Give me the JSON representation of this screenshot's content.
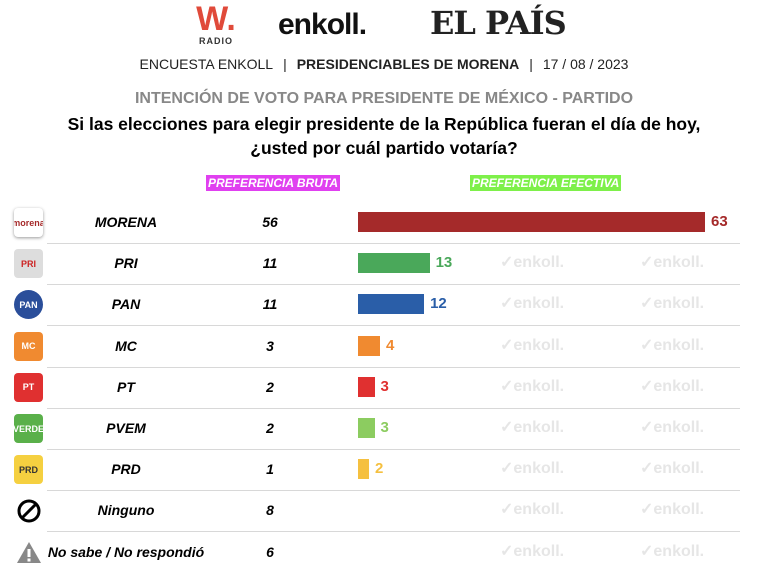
{
  "logos": {
    "wradio": "W.",
    "wradio_sub": "RADIO",
    "enkoll": "enkoll.",
    "elpais": "EL PAÍS"
  },
  "subtitle": {
    "left": "ENCUESTA ENKOLL",
    "center": "PRESIDENCIABLES DE MORENA",
    "right": "17 / 08 / 2023",
    "sep": "|"
  },
  "watermark": "enkoll.",
  "chart_data": {
    "type": "bar",
    "title": "INTENCIÓN DE VOTO PARA PRESIDENTE DE MÉXICO - PARTIDO",
    "subtitle": "Si las elecciones para elegir presidente de la República fueran el día de hoy, ¿usted por cuál partido votaría?",
    "col_bruta": "PREFERENCIA BRUTA",
    "col_efectiva": "PREFERENCIA EFECTIVA",
    "categories": [
      "MORENA",
      "PRI",
      "PAN",
      "MC",
      "PT",
      "PVEM",
      "PRD",
      "Ninguno",
      "No sabe / No respondió"
    ],
    "logo_text": [
      "morena",
      "PRI",
      "PAN",
      "MC",
      "PT",
      "VERDE",
      "PRD",
      "",
      ""
    ],
    "bruta": [
      56,
      11,
      11,
      3,
      2,
      2,
      1,
      8,
      6
    ],
    "efectiva": [
      63,
      13,
      12,
      4,
      3,
      3,
      2,
      null,
      null
    ],
    "colors": [
      "#a52a2a",
      "#4aa85a",
      "#2a5ea8",
      "#f08a30",
      "#e03030",
      "#8ccc60",
      "#f5c040",
      null,
      null
    ],
    "xlim": [
      0,
      63
    ]
  }
}
